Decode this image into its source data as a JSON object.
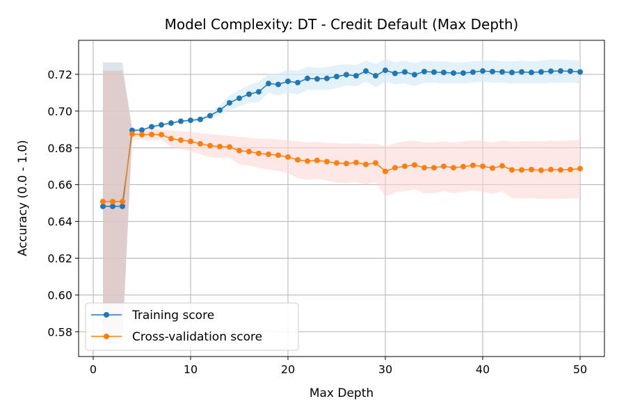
{
  "chart_data": {
    "type": "line",
    "title": "Model Complexity: DT - Credit Default (Max Depth)",
    "xlabel": "Max Depth",
    "ylabel": "Accuracy (0.0 - 1.0)",
    "xlim": [
      -1.5,
      52.5
    ],
    "ylim": [
      0.5665,
      0.7385
    ],
    "xticks": [
      0,
      10,
      20,
      30,
      40,
      50
    ],
    "xtick_labels": [
      "0",
      "10",
      "20",
      "30",
      "40",
      "50"
    ],
    "yticks": [
      0.58,
      0.6,
      0.62,
      0.64,
      0.66,
      0.68,
      0.7,
      0.72
    ],
    "ytick_labels": [
      "0.58",
      "0.60",
      "0.62",
      "0.64",
      "0.66",
      "0.68",
      "0.70",
      "0.72"
    ],
    "grid": true,
    "legend_position": "lower-left",
    "x": [
      1,
      2,
      3,
      4,
      5,
      6,
      7,
      8,
      9,
      10,
      11,
      12,
      13,
      14,
      15,
      16,
      17,
      18,
      19,
      20,
      21,
      22,
      23,
      24,
      25,
      26,
      27,
      28,
      29,
      30,
      31,
      32,
      33,
      34,
      35,
      36,
      37,
      38,
      39,
      40,
      41,
      42,
      43,
      44,
      45,
      46,
      47,
      48,
      49,
      50
    ],
    "series": [
      {
        "name": "Training score",
        "color": "#1f77b4",
        "values": [
          0.6482,
          0.6482,
          0.6482,
          0.6895,
          0.6897,
          0.6915,
          0.6925,
          0.6935,
          0.6945,
          0.695,
          0.6955,
          0.6975,
          0.7005,
          0.7045,
          0.707,
          0.7092,
          0.7105,
          0.715,
          0.7145,
          0.7162,
          0.7155,
          0.7178,
          0.7175,
          0.7178,
          0.7188,
          0.7198,
          0.7192,
          0.7218,
          0.7192,
          0.7222,
          0.7205,
          0.7213,
          0.7198,
          0.7215,
          0.7212,
          0.721,
          0.7207,
          0.7207,
          0.7212,
          0.7218,
          0.7215,
          0.7213,
          0.721,
          0.7213,
          0.721,
          0.7213,
          0.7217,
          0.7218,
          0.7217,
          0.7213
        ],
        "band_upper": [
          0.7265,
          0.7265,
          0.7265,
          0.6898,
          0.69,
          0.692,
          0.693,
          0.694,
          0.695,
          0.6958,
          0.6965,
          0.699,
          0.703,
          0.7085,
          0.7115,
          0.714,
          0.716,
          0.72,
          0.7205,
          0.7225,
          0.722,
          0.724,
          0.7235,
          0.724,
          0.725,
          0.7255,
          0.725,
          0.7275,
          0.7255,
          0.7285,
          0.7265,
          0.7275,
          0.726,
          0.7275,
          0.727,
          0.727,
          0.7265,
          0.7265,
          0.727,
          0.7275,
          0.7275,
          0.727,
          0.727,
          0.7275,
          0.727,
          0.7275,
          0.728,
          0.728,
          0.7278,
          0.7275
        ],
        "band_lower": [
          0.5735,
          0.5735,
          0.5735,
          0.6892,
          0.6894,
          0.691,
          0.692,
          0.693,
          0.694,
          0.6942,
          0.6945,
          0.696,
          0.698,
          0.7005,
          0.7025,
          0.7045,
          0.705,
          0.71,
          0.7085,
          0.71,
          0.709,
          0.7115,
          0.7115,
          0.7115,
          0.7125,
          0.714,
          0.7135,
          0.716,
          0.713,
          0.716,
          0.7145,
          0.715,
          0.7135,
          0.7155,
          0.7155,
          0.715,
          0.715,
          0.715,
          0.7155,
          0.716,
          0.7155,
          0.7155,
          0.715,
          0.715,
          0.715,
          0.715,
          0.7155,
          0.7155,
          0.7155,
          0.715
        ]
      },
      {
        "name": "Cross-validation score",
        "color": "#ff7f0e",
        "values": [
          0.6508,
          0.6508,
          0.6508,
          0.6875,
          0.6872,
          0.6873,
          0.6872,
          0.685,
          0.6842,
          0.6835,
          0.6822,
          0.6812,
          0.6807,
          0.6805,
          0.6785,
          0.678,
          0.677,
          0.6765,
          0.676,
          0.675,
          0.6735,
          0.6728,
          0.6732,
          0.6725,
          0.6718,
          0.6715,
          0.672,
          0.671,
          0.6718,
          0.6672,
          0.6692,
          0.67,
          0.6707,
          0.6692,
          0.6692,
          0.67,
          0.6692,
          0.6698,
          0.6705,
          0.67,
          0.669,
          0.6702,
          0.668,
          0.668,
          0.6682,
          0.6678,
          0.6682,
          0.668,
          0.6682,
          0.6687
        ],
        "band_upper": [
          0.722,
          0.722,
          0.722,
          0.6905,
          0.69,
          0.6905,
          0.69,
          0.6895,
          0.689,
          0.6888,
          0.688,
          0.6875,
          0.687,
          0.6865,
          0.686,
          0.6855,
          0.685,
          0.6848,
          0.6845,
          0.684,
          0.6835,
          0.683,
          0.6832,
          0.6828,
          0.6825,
          0.6822,
          0.6825,
          0.682,
          0.6822,
          0.681,
          0.6825,
          0.6835,
          0.684,
          0.683,
          0.683,
          0.6835,
          0.683,
          0.6835,
          0.684,
          0.6838,
          0.683,
          0.684,
          0.6835,
          0.6835,
          0.6838,
          0.6835,
          0.684,
          0.6838,
          0.684,
          0.6845
        ],
        "band_lower": [
          0.579,
          0.579,
          0.579,
          0.6845,
          0.6844,
          0.6841,
          0.6844,
          0.6805,
          0.6794,
          0.6782,
          0.6764,
          0.6749,
          0.6744,
          0.6745,
          0.671,
          0.6705,
          0.669,
          0.6682,
          0.6675,
          0.666,
          0.6635,
          0.6626,
          0.6632,
          0.6622,
          0.6611,
          0.6608,
          0.6615,
          0.66,
          0.6614,
          0.6534,
          0.6559,
          0.6565,
          0.6574,
          0.6554,
          0.6554,
          0.6565,
          0.6554,
          0.6561,
          0.657,
          0.6562,
          0.655,
          0.6564,
          0.6525,
          0.6525,
          0.6526,
          0.6521,
          0.6524,
          0.6522,
          0.6524,
          0.6529
        ]
      }
    ]
  }
}
